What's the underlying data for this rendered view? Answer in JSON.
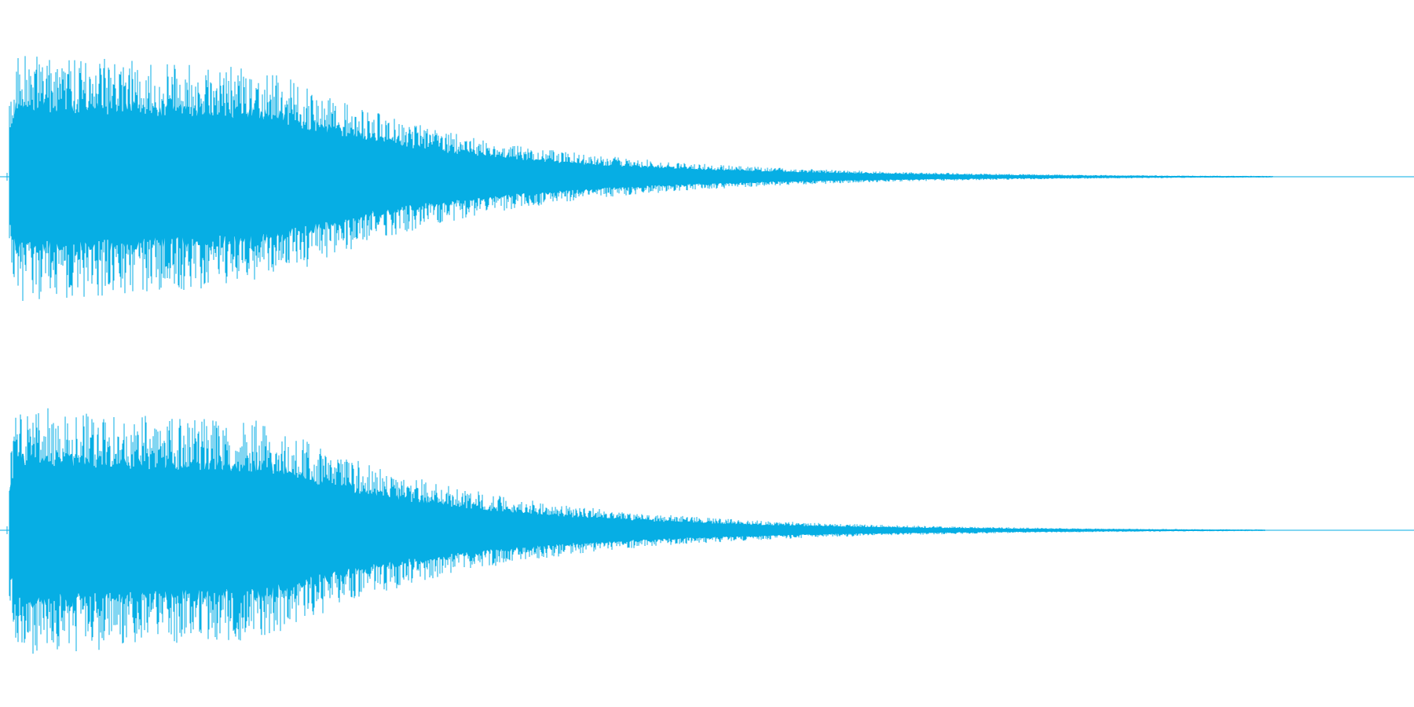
{
  "view": {
    "type": "stereo-waveform",
    "background": "#ffffff",
    "waveform_color": "#06aee4",
    "channels": [
      {
        "id": "left-channel"
      },
      {
        "id": "right-channel"
      }
    ]
  }
}
